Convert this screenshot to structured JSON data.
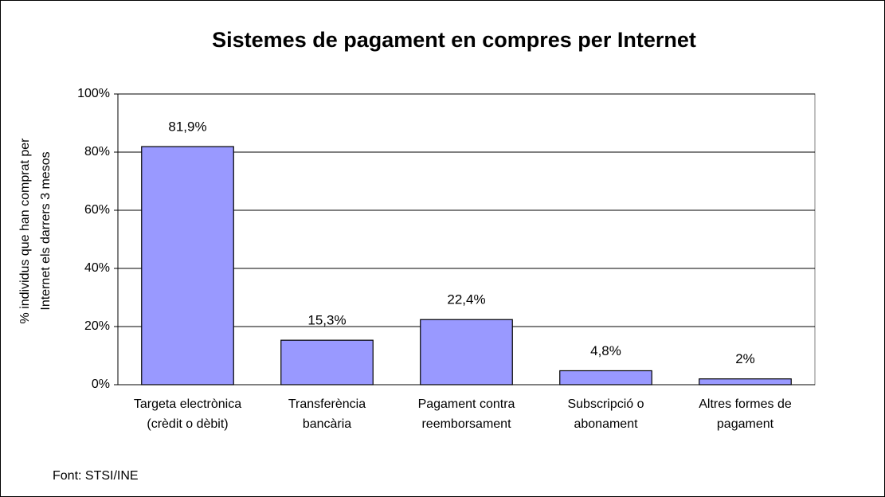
{
  "chart_data": {
    "type": "bar",
    "title": "Sistemes de pagament en compres per Internet",
    "y_label": [
      "% individus que han comprat per",
      "Internet els darrers 3 mesos"
    ],
    "categories": [
      [
        "Targeta electrònica",
        "(crèdit o dèbit)"
      ],
      [
        "Transferència",
        "bancària"
      ],
      [
        "Pagament contra",
        "reemborsament"
      ],
      [
        "Subscripció o",
        "abonament"
      ],
      [
        "Altres formes de",
        "pagament"
      ]
    ],
    "values": [
      81.9,
      15.3,
      22.4,
      4.8,
      2
    ],
    "value_labels": [
      "81,9%",
      "15,3%",
      "22,4%",
      "4,8%",
      "2%"
    ],
    "color": "#9999ff",
    "ylim": [
      0,
      100
    ],
    "yticks": [
      {
        "value": 0,
        "label": "0%"
      },
      {
        "value": 20,
        "label": "20%"
      },
      {
        "value": 40,
        "label": "40%"
      },
      {
        "value": 60,
        "label": "60%"
      },
      {
        "value": 80,
        "label": "80%"
      },
      {
        "value": 100,
        "label": "100%"
      }
    ],
    "grid": true,
    "source": "Font: STSI/INE"
  }
}
